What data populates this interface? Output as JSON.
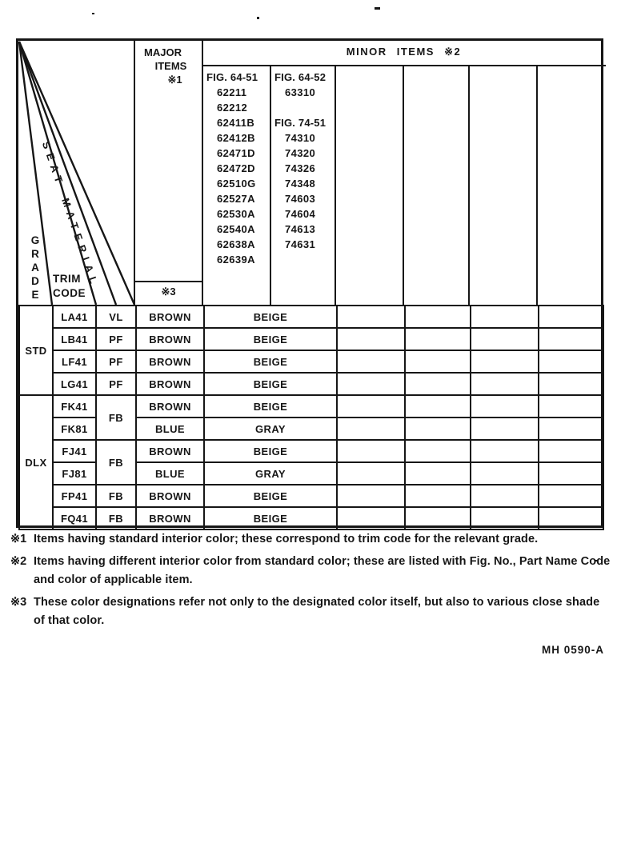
{
  "page": {
    "stamp": "MH 0590-A"
  },
  "table": {
    "corner": {
      "grade": "GRADE",
      "trim_code": "TRIM\nCODE",
      "seat_material": "SEAT MATERIAL"
    },
    "major_header": {
      "line1": "MAJOR",
      "line2": "ITEMS",
      "mark": "※1",
      "footer_mark": "※3"
    },
    "minor_header": "MINOR ITEMS ※2",
    "fig_lists": [
      {
        "lines": [
          "FIG. 64-51",
          "62211",
          "62212",
          "62411B",
          "62412B",
          "62471D",
          "62472D",
          "62510G",
          "62527A",
          "62530A",
          "62540A",
          "62638A",
          "62639A"
        ]
      },
      {
        "lines": [
          "FIG. 64-52",
          "63310",
          "",
          "FIG. 74-51",
          "74310",
          "74320",
          "74326",
          "74348",
          "74603",
          "74604",
          "74613",
          "74631"
        ]
      }
    ],
    "grades": [
      {
        "label": "STD",
        "span": 4
      },
      {
        "label": "DLX",
        "span": 6
      }
    ],
    "rows": [
      {
        "trim": "LA41",
        "material": "VL",
        "material_span": 1,
        "major": "BROWN",
        "minor": "BEIGE"
      },
      {
        "trim": "LB41",
        "material": "PF",
        "material_span": 1,
        "major": "BROWN",
        "minor": "BEIGE"
      },
      {
        "trim": "LF41",
        "material": "PF",
        "material_span": 1,
        "major": "BROWN",
        "minor": "BEIGE"
      },
      {
        "trim": "LG41",
        "material": "PF",
        "material_span": 1,
        "major": "BROWN",
        "minor": "BEIGE"
      },
      {
        "trim": "FK41",
        "material": "FB",
        "material_span": 2,
        "major": "BROWN",
        "minor": "BEIGE"
      },
      {
        "trim": "FK81",
        "major": "BLUE",
        "minor": "GRAY"
      },
      {
        "trim": "FJ41",
        "material": "FB",
        "material_span": 2,
        "major": "BROWN",
        "minor": "BEIGE"
      },
      {
        "trim": "FJ81",
        "major": "BLUE",
        "minor": "GRAY"
      },
      {
        "trim": "FP41",
        "material": "FB",
        "material_span": 1,
        "major": "BROWN",
        "minor": "BEIGE"
      },
      {
        "trim": "FQ41",
        "material": "FB",
        "material_span": 1,
        "major": "BROWN",
        "minor": "BEIGE"
      }
    ],
    "empty_cols": 4
  },
  "footnotes": [
    {
      "mark": "※1",
      "text": "Items having standard interior color; these correspond to trim code for the relevant grade."
    },
    {
      "mark": "※2",
      "text": "Items having different interior color from standard color; these are listed with Fig. No., Part Name Code and color of applicable item."
    },
    {
      "mark": "※3",
      "text": "These color designations refer not only to the designated color itself, but also to various close shade of that color."
    }
  ],
  "colors": {
    "ink": "#161616",
    "paper": "#ffffff"
  }
}
